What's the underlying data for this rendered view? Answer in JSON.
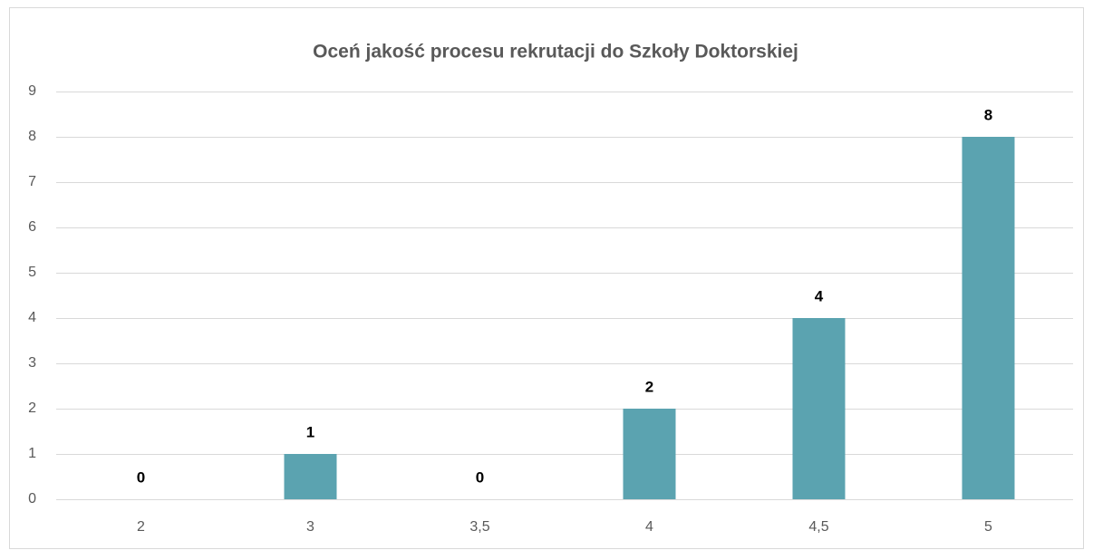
{
  "chart_data": {
    "type": "bar",
    "title": "Oceń jakość procesu rekrutacji do Szkoły Doktorskiej",
    "categories": [
      "2",
      "3",
      "3,5",
      "4",
      "4,5",
      "5"
    ],
    "values": [
      0,
      1,
      0,
      2,
      4,
      8
    ],
    "color": "#5ba3b0",
    "ylim": [
      0,
      9
    ],
    "yticks": [
      0,
      1,
      2,
      3,
      4,
      5,
      6,
      7,
      8,
      9
    ],
    "grid": true
  }
}
